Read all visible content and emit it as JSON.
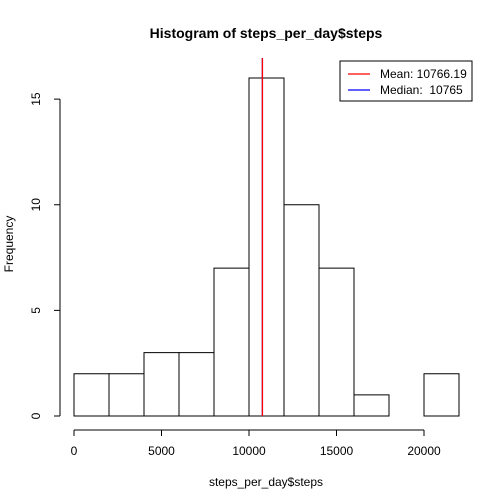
{
  "chart_data": {
    "type": "bar",
    "title": "Histogram of steps_per_day$steps",
    "xlabel": "steps_per_day$steps",
    "ylabel": "Frequency",
    "bin_width": 2000,
    "bins": [
      {
        "start": 0,
        "end": 2000,
        "count": 2
      },
      {
        "start": 2000,
        "end": 4000,
        "count": 2
      },
      {
        "start": 4000,
        "end": 6000,
        "count": 3
      },
      {
        "start": 6000,
        "end": 8000,
        "count": 3
      },
      {
        "start": 8000,
        "end": 10000,
        "count": 7
      },
      {
        "start": 10000,
        "end": 12000,
        "count": 16
      },
      {
        "start": 12000,
        "end": 14000,
        "count": 10
      },
      {
        "start": 14000,
        "end": 16000,
        "count": 7
      },
      {
        "start": 16000,
        "end": 18000,
        "count": 1
      },
      {
        "start": 18000,
        "end": 20000,
        "count": 0
      },
      {
        "start": 20000,
        "end": 22000,
        "count": 2
      }
    ],
    "xlim": [
      0,
      22000
    ],
    "ylim": [
      0,
      16
    ],
    "xticks": [
      0,
      5000,
      10000,
      15000,
      20000
    ],
    "yticks": [
      0,
      5,
      10,
      15
    ],
    "reference_lines": [
      {
        "value": 10766.19,
        "color": "#ff0000"
      },
      {
        "value": 10765,
        "color": "#0000ff"
      }
    ],
    "legend": {
      "position": "top-right",
      "entries": [
        {
          "label": "Mean: 10766.19",
          "color": "#ff0000"
        },
        {
          "label": "Median:  10765",
          "color": "#0000ff"
        }
      ]
    },
    "grid": false
  }
}
